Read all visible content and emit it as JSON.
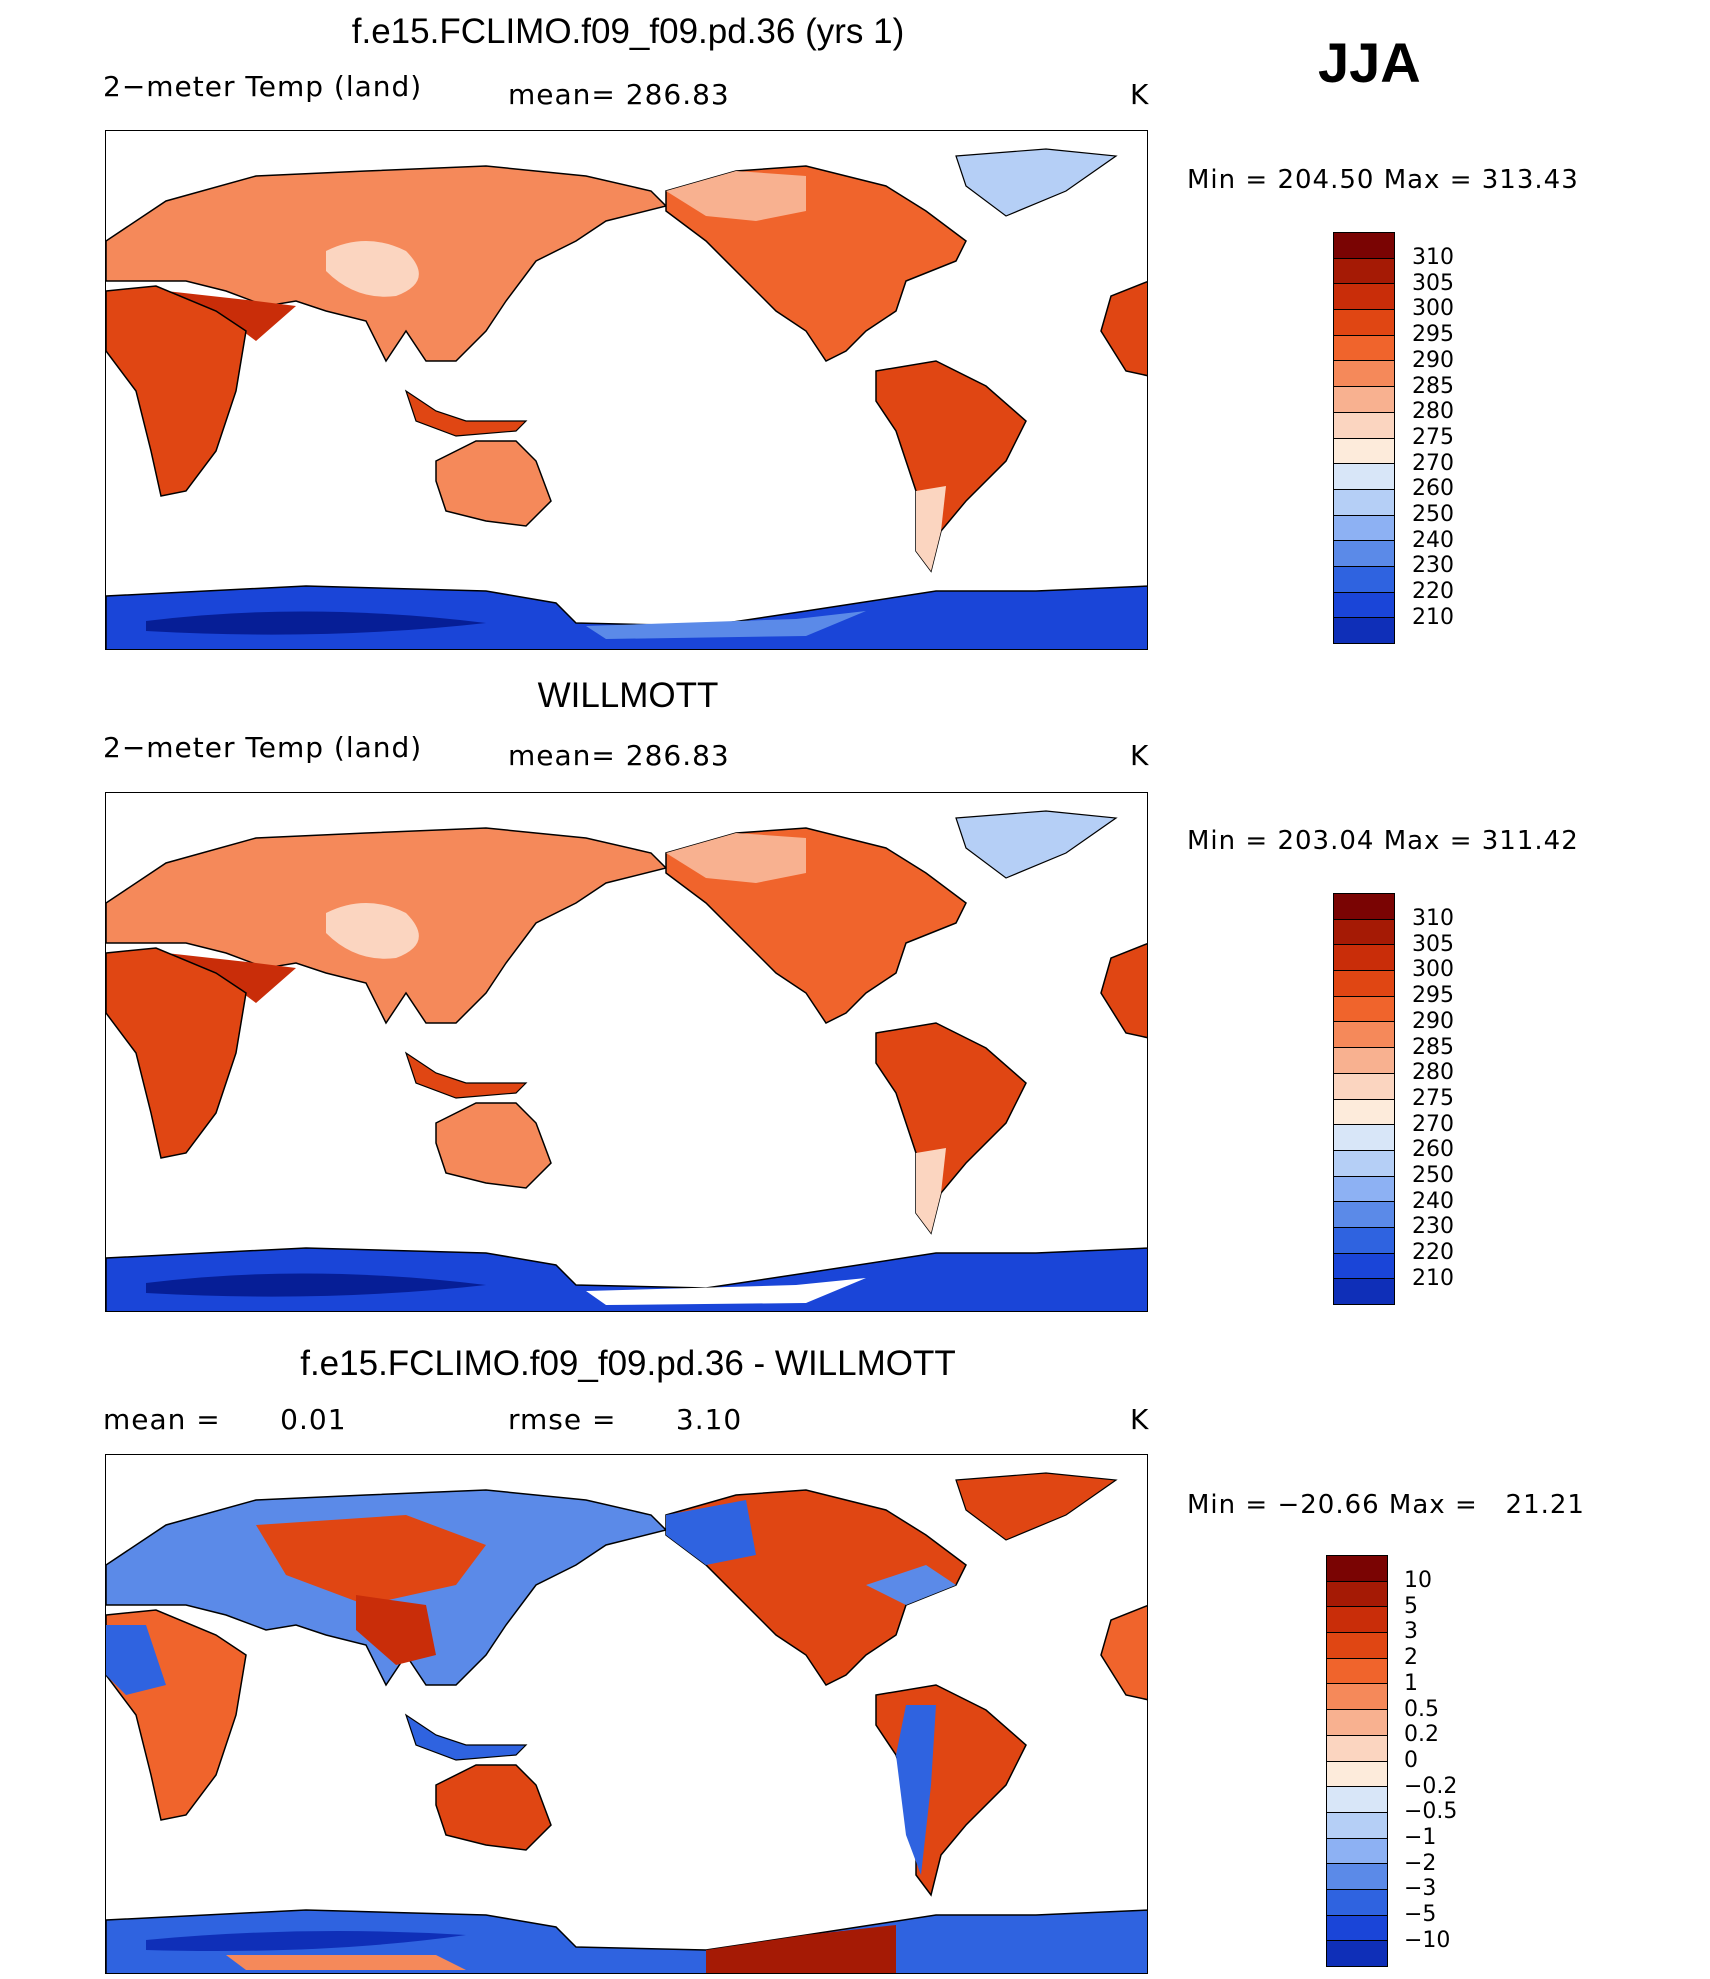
{
  "season": "JJA",
  "panels": [
    {
      "title": "f.e15.FCLIMO.f09_f09.pd.36 (yrs 1)",
      "left_label": "2−meter Temp (land)",
      "mid_label": "mean= 286.83",
      "units": "K",
      "minmax": "Min = 204.50 Max = 313.43",
      "map_name": "model-2m-temperature-map",
      "colorbar_labels": [
        "310",
        "305",
        "300",
        "295",
        "290",
        "285",
        "280",
        "275",
        "270",
        "260",
        "250",
        "240",
        "230",
        "220",
        "210"
      ]
    },
    {
      "title": "WILLMOTT",
      "left_label": "2−meter Temp (land)",
      "mid_label": "mean= 286.83",
      "units": "K",
      "minmax": "Min = 203.04 Max = 311.42",
      "map_name": "obs-2m-temperature-map",
      "colorbar_labels": [
        "310",
        "305",
        "300",
        "295",
        "290",
        "285",
        "280",
        "275",
        "270",
        "260",
        "250",
        "240",
        "230",
        "220",
        "210"
      ]
    },
    {
      "title": "f.e15.FCLIMO.f09_f09.pd.36 - WILLMOTT",
      "left_label": "mean =      0.01",
      "mid_label": "rmse =      3.10",
      "units": "K",
      "minmax": "Min = −20.66 Max =   21.21",
      "map_name": "difference-2m-temperature-map",
      "colorbar_labels": [
        "10",
        "5",
        "3",
        "2",
        "1",
        "0.5",
        "0.2",
        "0",
        "−0.2",
        "−0.5",
        "−1",
        "−2",
        "−3",
        "−5",
        "−10"
      ]
    }
  ],
  "colors": {
    "abs_scale": [
      "#7a0403",
      "#a51a05",
      "#c92d09",
      "#e04613",
      "#f0642c",
      "#f5895a",
      "#f8b190",
      "#fbd5c0",
      "#fdebdb",
      "#d8e6f8",
      "#b5cff6",
      "#8db1f3",
      "#5b8ae8",
      "#2f63e0",
      "#1a45d8",
      "#0f2fb8",
      "#061e96",
      "#000f6e"
    ],
    "diff_scale": [
      "#7a0403",
      "#a51a05",
      "#c92d09",
      "#e04613",
      "#f0642c",
      "#f5895a",
      "#f8b190",
      "#fbd5c0",
      "#fdebdb",
      "#d8e6f8",
      "#b5cff6",
      "#8db1f3",
      "#5b8ae8",
      "#2f63e0",
      "#1a45d8",
      "#0f2fb8",
      "#000f6e"
    ]
  }
}
